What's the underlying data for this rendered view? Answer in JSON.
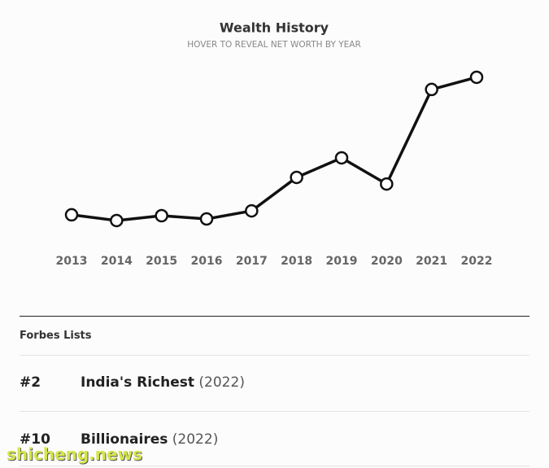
{
  "chart_data": {
    "type": "line",
    "title": "Wealth History",
    "subtitle": "HOVER TO REVEAL NET WORTH BY YEAR",
    "categories": [
      "2013",
      "2014",
      "2015",
      "2016",
      "2017",
      "2018",
      "2019",
      "2020",
      "2021",
      "2022"
    ],
    "values": [
      16.4,
      13.2,
      15.9,
      14.1,
      18.6,
      37.3,
      48.2,
      33.6,
      86.4,
      93.2
    ],
    "ylim": [
      0,
      100
    ],
    "color": "#111111"
  },
  "lists": {
    "title": "Forbes Lists",
    "rows": [
      {
        "rank": "#2",
        "name": "India's Richest",
        "year": "(2022)"
      },
      {
        "rank": "#10",
        "name": "Billionaires",
        "year": "(2022)"
      }
    ]
  },
  "watermark": "shicheng.news"
}
